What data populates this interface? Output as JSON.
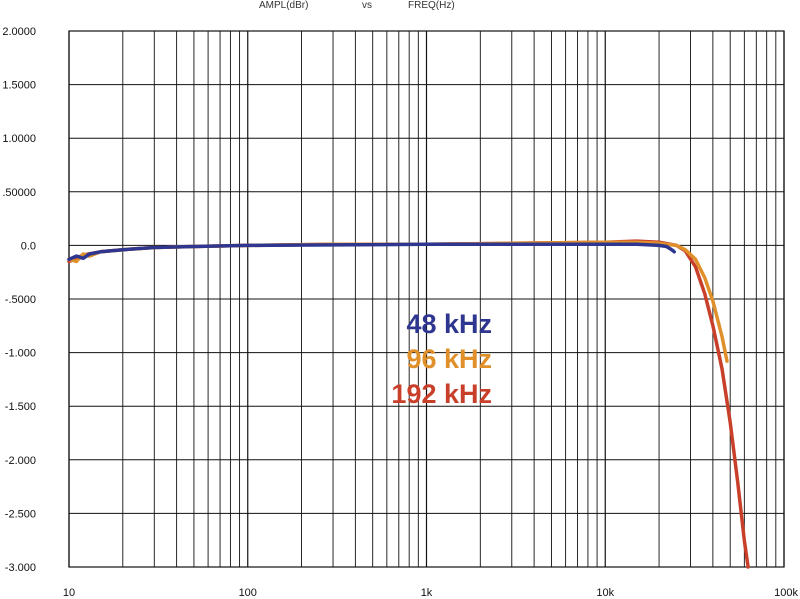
{
  "header": {
    "y_quantity": "AMPL(dBr)",
    "vs": "vs",
    "x_quantity": "FREQ(Hz)"
  },
  "chart_data": {
    "type": "line",
    "xscale": "log",
    "xlim": [
      10,
      100000
    ],
    "ylim": [
      -3.0,
      2.0
    ],
    "grid": true,
    "y_tick_labels": [
      "2.0000",
      "1.5000",
      "1.0000",
      ".50000",
      "0.0",
      "-.5000",
      "-1.000",
      "-1.500",
      "-2.000",
      "-2.500",
      "-3.000"
    ],
    "y_tick_values": [
      2.0,
      1.5,
      1.0,
      0.5,
      0.0,
      -0.5,
      -1.0,
      -1.5,
      -2.0,
      -2.5,
      -3.0
    ],
    "x_tick_labels": [
      "10",
      "100",
      "1k",
      "10k",
      "100k"
    ],
    "x_tick_values": [
      10,
      100,
      1000,
      10000,
      100000
    ],
    "legend_placement": "center",
    "series": [
      {
        "name": "192 kHz",
        "color": "#c8402a",
        "x": [
          10,
          12,
          15,
          20,
          30,
          50,
          100,
          300,
          1000,
          3000,
          10000,
          15000,
          20000,
          25000,
          28000,
          32000,
          36000,
          40000,
          45000,
          50000,
          55000,
          60000,
          63000
        ],
        "y": [
          -0.15,
          -0.09,
          -0.06,
          -0.04,
          -0.02,
          -0.01,
          0.0,
          0.01,
          0.01,
          0.02,
          0.03,
          0.04,
          0.03,
          0.0,
          -0.05,
          -0.2,
          -0.45,
          -0.75,
          -1.15,
          -1.65,
          -2.2,
          -2.75,
          -3.0
        ]
      },
      {
        "name": "96 kHz",
        "color": "#e0902a",
        "x": [
          10,
          11,
          12,
          13,
          15,
          20,
          30,
          50,
          100,
          300,
          1000,
          3000,
          10000,
          15000,
          20000,
          25000,
          28000,
          32000,
          36000,
          40000,
          45000,
          48000
        ],
        "y": [
          -0.13,
          -0.15,
          -0.08,
          -0.1,
          -0.06,
          -0.04,
          -0.02,
          -0.01,
          0.0,
          0.01,
          0.01,
          0.02,
          0.03,
          0.03,
          0.02,
          0.0,
          -0.04,
          -0.13,
          -0.3,
          -0.52,
          -0.85,
          -1.08
        ]
      },
      {
        "name": "48 kHz",
        "color": "#2e3690",
        "x": [
          10,
          11,
          12,
          13,
          15,
          20,
          30,
          50,
          100,
          300,
          1000,
          3000,
          10000,
          15000,
          20000,
          22000,
          23000,
          24000,
          24300
        ],
        "y": [
          -0.13,
          -0.1,
          -0.12,
          -0.08,
          -0.06,
          -0.04,
          -0.02,
          -0.01,
          0.0,
          0.005,
          0.01,
          0.01,
          0.01,
          0.01,
          0.0,
          -0.01,
          -0.03,
          -0.05,
          -0.06
        ]
      }
    ],
    "legend": [
      {
        "label": "48 kHz",
        "color": "#2e3690"
      },
      {
        "label": "96 kHz",
        "color": "#e0902a"
      },
      {
        "label": "192 kHz",
        "color": "#c8402a"
      }
    ]
  }
}
